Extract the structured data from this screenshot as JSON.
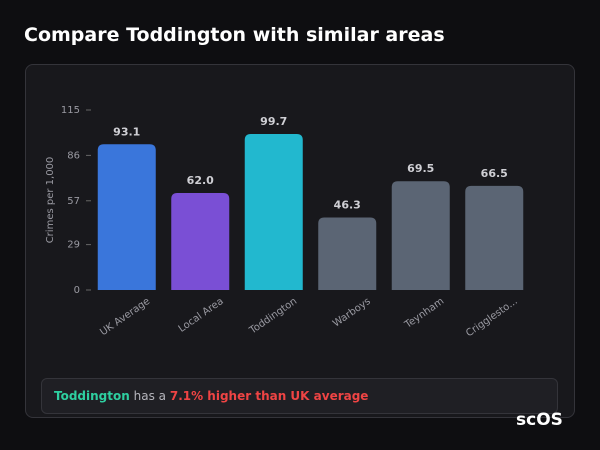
{
  "header": {
    "title": "Compare Toddington with similar areas"
  },
  "chart_data": {
    "type": "bar",
    "y_label": "Crimes per 1,000",
    "categories": [
      "UK Average",
      "Local Area",
      "Toddington",
      "Warboys",
      "Teynham",
      "Crigglesto..."
    ],
    "values": [
      93.1,
      62.0,
      99.7,
      46.3,
      69.5,
      66.5
    ],
    "value_labels": [
      "93.1",
      "62.0",
      "99.7",
      "46.3",
      "69.5",
      "66.5"
    ],
    "colors": [
      "#3a76db",
      "#7a4fd5",
      "#22b8cf",
      "#5b6574",
      "#5b6574",
      "#5b6574"
    ],
    "ylim": [
      0,
      115
    ],
    "yticks": [
      0,
      29,
      57,
      86,
      115
    ],
    "grid": false
  },
  "callout": {
    "area": "Toddington",
    "text": "has a",
    "highlight": "7.1% higher than UK average"
  },
  "logo": "scOS"
}
